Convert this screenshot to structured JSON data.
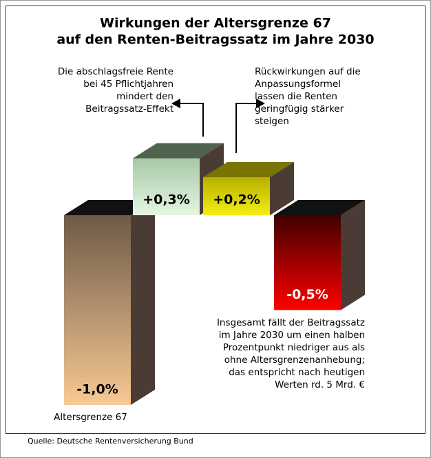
{
  "chart_data": {
    "type": "bar3d",
    "title": [
      "Wirkungen der Altersgrenze 67",
      "auf den Renten-Beitragssatz im Jahre 2030"
    ],
    "categories": [
      "Altersgrenze 67",
      null,
      null,
      null
    ],
    "values": [
      -1.0,
      0.3,
      0.2,
      -0.5
    ],
    "value_labels": [
      "-1,0%",
      "+0,3%",
      "+0,2%",
      "-0,5%"
    ],
    "colors": [
      [
        "#6e5a48",
        "#f8c993"
      ],
      [
        "#a8c8a8",
        "#e4f6e0"
      ],
      [
        "#b8b000",
        "#f4ee10"
      ],
      [
        "#400000",
        "#ff0000"
      ]
    ],
    "annotations": [
      [
        "Die abschlagsfreie Rente",
        "bei 45 Pflichtjahren",
        "mindert den",
        "Beitragssatz-Effekt"
      ],
      [
        "Rückwirkungen auf die",
        "Anpassungsformel",
        "lassen die Renten",
        "geringfügig stärker",
        "steigen"
      ],
      [
        "Insgesamt fällt der Beitragssatz",
        "im Jahre 2030 um einen halben",
        "Prozentpunkt niedriger aus als",
        "ohne Altersgrenzenanhebung;",
        "das entspricht nach heutigen",
        "Werten rd. 5 Mrd. €"
      ]
    ],
    "source": "Quelle: Deutsche Rentenversicherung Bund"
  }
}
